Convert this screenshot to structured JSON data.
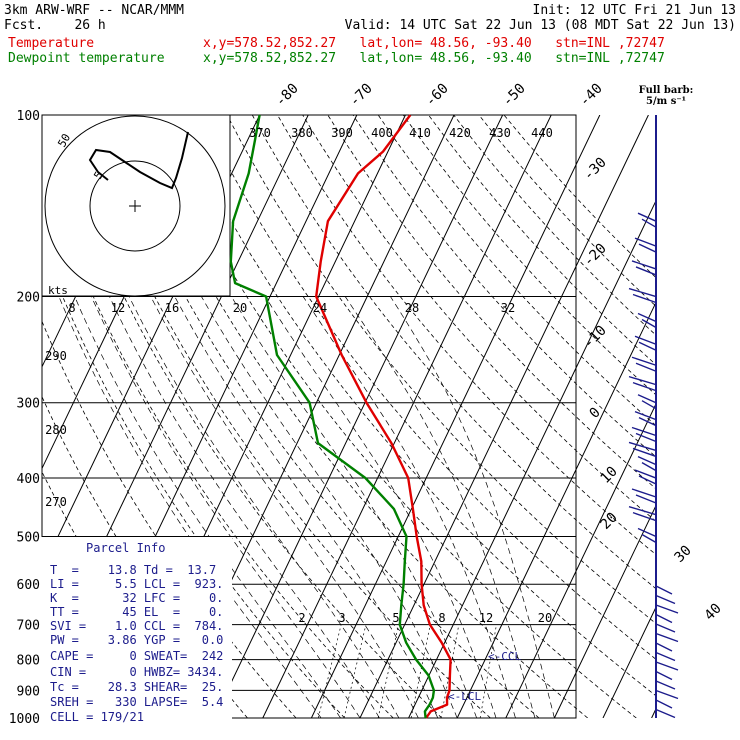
{
  "header": {
    "model": "3km ARW-WRF -- NCAR/MMM",
    "init": "Init: 12 UTC Fri 21 Jun 13",
    "fcst": "Fcst.    26 h",
    "valid": "Valid: 14 UTC Sat 22 Jun 13 (08 MDT Sat 22 Jun 13)",
    "temp_label": "Temperature",
    "dew_label": "Dewpoint temperature",
    "temp_loc": "x,y=578.52,852.27   lat,lon= 48.56, -93.40   stn=INL ,72747",
    "dew_loc": "x,y=578.52,852.27   lat,lon= 48.56, -93.40   stn=INL ,72747"
  },
  "barb_legend": {
    "title": "Full barb:",
    "unit": "5/m s⁻¹"
  },
  "hodograph": {
    "unit": "kts",
    "ring_labels": [
      "5",
      "50"
    ]
  },
  "parcel_info": {
    "title": "Parcel Info",
    "rows": [
      "T  =    13.8 Td =  13.7",
      "LI =     5.5 LCL =  923.",
      "K  =      32 LFC =    0.",
      "TT =      45 EL  =    0.",
      "SVI =    1.0 CCL =  784.",
      "PW =    3.86 YGP =   0.0",
      "CAPE =     0 SWEAT=  242",
      "CIN =      0 HWBZ= 3434.",
      "Tc =    28.3 SHEAR=  25.",
      "SREH =   330 LAPSE=  5.4",
      "CELL = 179/21"
    ]
  },
  "chart_data": {
    "type": "line",
    "diagram": "skew-T log-p",
    "title": "",
    "xlabel": "",
    "ylabel": "",
    "y_scale": "log",
    "ylim": [
      1000,
      100
    ],
    "pressure_ticks": [
      100,
      200,
      300,
      400,
      500,
      600,
      700,
      800,
      900,
      1000
    ],
    "isotherm_labels": [
      -80,
      -70,
      -60,
      -50,
      -40,
      -30,
      -20,
      -10,
      0,
      10,
      20,
      30,
      40
    ],
    "theta_labels": [
      270,
      280,
      290,
      370,
      380,
      390,
      400,
      410,
      420,
      430,
      440
    ],
    "mixing_ratio_labels": [
      2,
      3,
      5,
      8,
      12,
      20
    ],
    "wind_scale_labels": [
      8,
      12,
      16,
      20,
      24,
      28,
      32
    ],
    "annotations": [
      "<-CCL",
      "<-LCL"
    ],
    "series": [
      {
        "name": "Temperature",
        "color": "#e00000",
        "points": [
          [
            1000,
            13.6
          ],
          [
            975,
            13.9
          ],
          [
            950,
            16.6
          ],
          [
            925,
            15.9
          ],
          [
            900,
            15.7
          ],
          [
            850,
            14.3
          ],
          [
            800,
            12.9
          ],
          [
            750,
            9.4
          ],
          [
            700,
            5.2
          ],
          [
            650,
            2.0
          ],
          [
            600,
            -0.5
          ],
          [
            550,
            -2.8
          ],
          [
            500,
            -6.2
          ],
          [
            450,
            -9.7
          ],
          [
            400,
            -13.7
          ],
          [
            350,
            -20.6
          ],
          [
            300,
            -29.7
          ],
          [
            250,
            -39.5
          ],
          [
            200,
            -50.5
          ],
          [
            175,
            -53.0
          ],
          [
            150,
            -55.5
          ],
          [
            125,
            -54.0
          ],
          [
            115,
            -51.0
          ],
          [
            100,
            -49.0
          ]
        ]
      },
      {
        "name": "Dewpoint temperature",
        "color": "#008000",
        "points": [
          [
            1000,
            13.5
          ],
          [
            975,
            12.7
          ],
          [
            950,
            13.0
          ],
          [
            925,
            13.0
          ],
          [
            900,
            12.5
          ],
          [
            850,
            9.9
          ],
          [
            800,
            5.8
          ],
          [
            750,
            2.1
          ],
          [
            700,
            -1.0
          ],
          [
            650,
            -2.6
          ],
          [
            600,
            -4.2
          ],
          [
            550,
            -6.2
          ],
          [
            500,
            -8.3
          ],
          [
            450,
            -13.6
          ],
          [
            400,
            -22.5
          ],
          [
            350,
            -35.7
          ],
          [
            300,
            -41.4
          ],
          [
            250,
            -52.8
          ],
          [
            200,
            -60.8
          ],
          [
            190,
            -68.5
          ],
          [
            175,
            -71.5
          ],
          [
            150,
            -75.0
          ],
          [
            125,
            -76.5
          ],
          [
            110,
            -78.5
          ],
          [
            100,
            -80.0
          ]
        ]
      }
    ]
  }
}
